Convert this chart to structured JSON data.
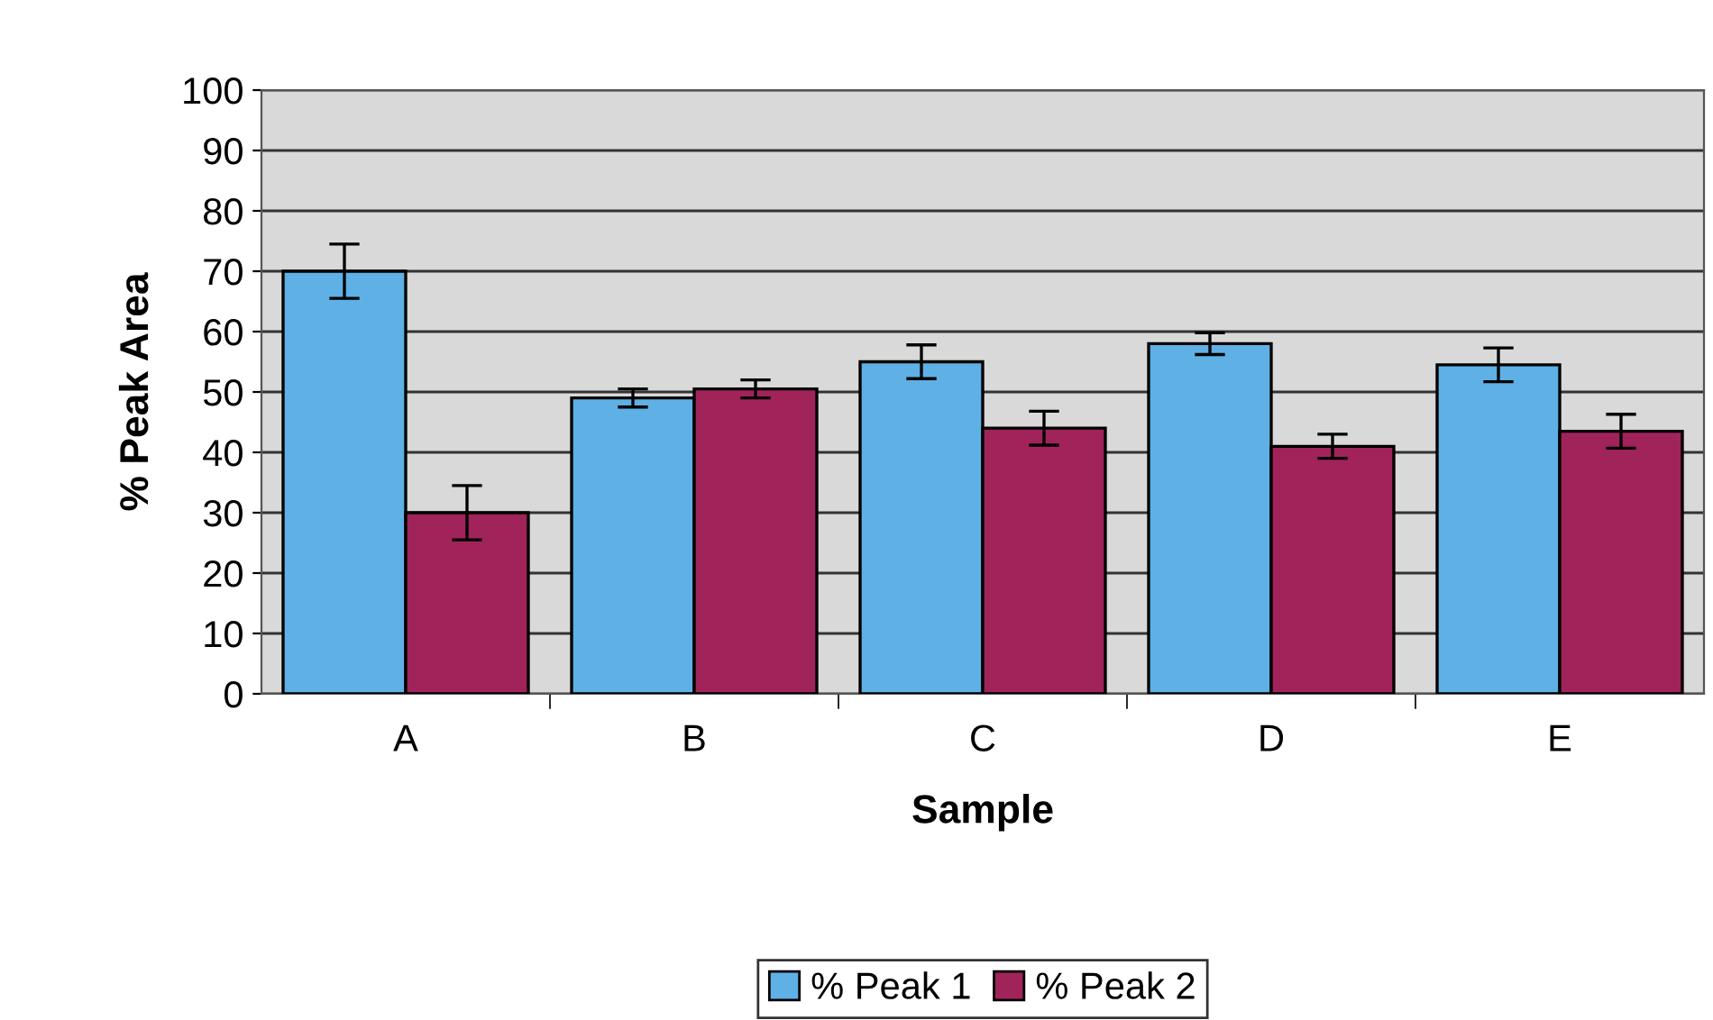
{
  "chart_data": {
    "type": "bar",
    "xlabel": "Sample",
    "ylabel": "% Peak Area",
    "categories": [
      "A",
      "B",
      "C",
      "D",
      "E"
    ],
    "series": [
      {
        "name": "% Peak 1",
        "color": "#5eb0e5",
        "values": [
          70,
          49,
          55,
          58,
          54.5
        ],
        "errors": [
          4.5,
          1.5,
          2.8,
          1.8,
          2.8
        ]
      },
      {
        "name": "% Peak 2",
        "color": "#a0245a",
        "values": [
          30,
          50.5,
          44,
          41,
          43.5
        ],
        "errors": [
          4.5,
          1.5,
          2.8,
          2,
          2.8
        ]
      }
    ],
    "ylim": [
      0,
      100
    ],
    "yticks": [
      0,
      10,
      20,
      30,
      40,
      50,
      60,
      70,
      80,
      90,
      100
    ],
    "grid": "y",
    "legend": "bottom"
  }
}
